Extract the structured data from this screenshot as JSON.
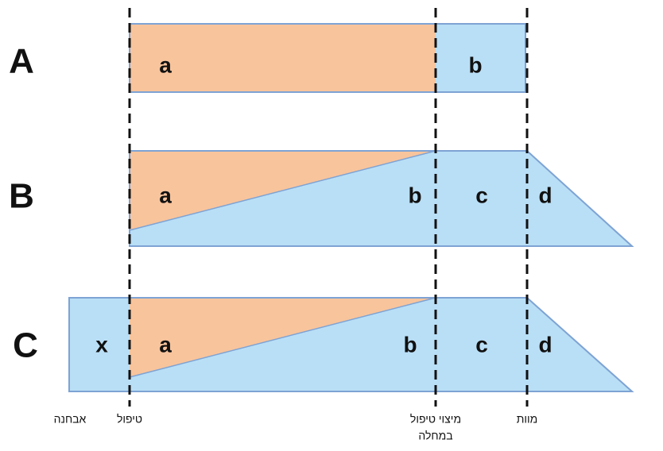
{
  "rows": [
    {
      "label": "A",
      "regions": [
        "a",
        "b"
      ]
    },
    {
      "label": "B",
      "regions": [
        "a",
        "b",
        "c",
        "d"
      ]
    },
    {
      "label": "C",
      "regions": [
        "x",
        "a",
        "b",
        "c",
        "d"
      ]
    }
  ],
  "timeline": [
    {
      "lines": [
        "אבחנה"
      ]
    },
    {
      "lines": [
        "טיפול"
      ]
    },
    {
      "lines": [
        "מיצוי טיפול",
        "במחלה"
      ]
    },
    {
      "lines": [
        "מוות"
      ]
    }
  ]
}
